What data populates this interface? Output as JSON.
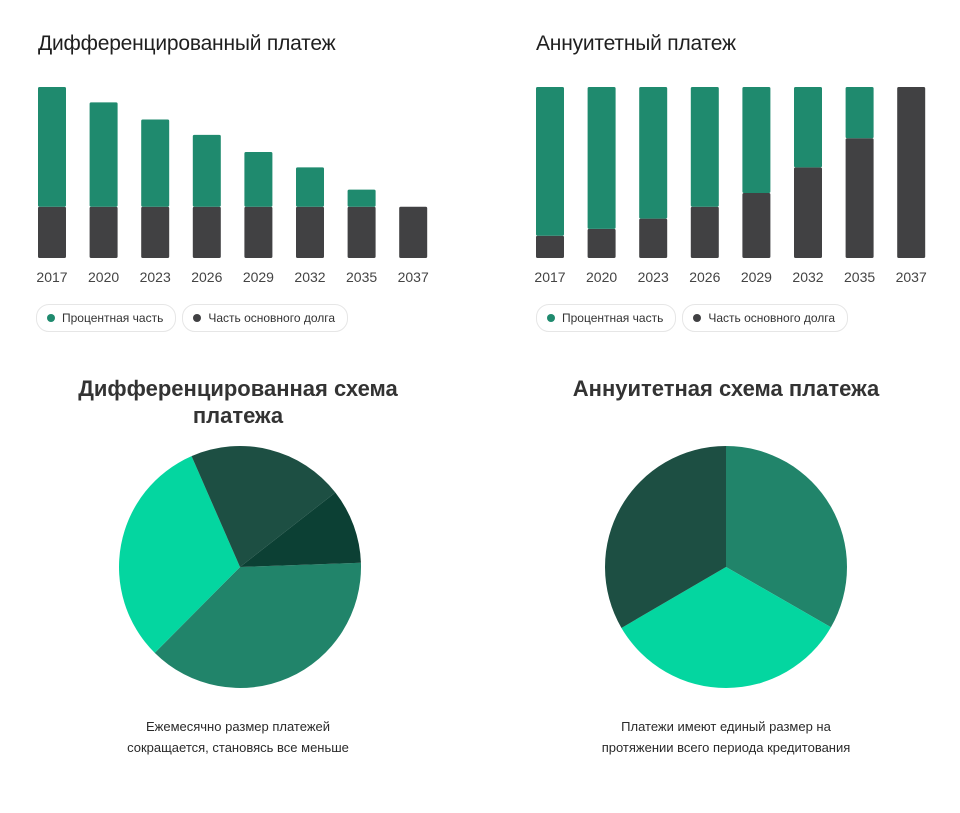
{
  "colors": {
    "interest": "#1f8a6e",
    "principal": "#414143",
    "pie_light": "#04d6a0",
    "pie_mid": "#21846a",
    "pie_dark": "#1d4f43",
    "pie_darkest": "#0c4034"
  },
  "legend": {
    "interest_label": "Процентная часть",
    "principal_label": "Часть основного долга"
  },
  "chart_data": [
    {
      "type": "bar",
      "stacked": true,
      "title": "Дифференцированный платеж",
      "categories": [
        "2017",
        "2020",
        "2023",
        "2026",
        "2029",
        "2032",
        "2035",
        "2037"
      ],
      "series": [
        {
          "name": "Часть основного долга",
          "values": [
            30,
            30,
            30,
            30,
            30,
            30,
            30,
            30
          ]
        },
        {
          "name": "Процентная часть",
          "values": [
            70,
            61,
            51,
            42,
            32,
            23,
            10,
            0
          ]
        }
      ],
      "ylim": [
        0,
        100
      ]
    },
    {
      "type": "bar",
      "stacked": true,
      "title": "Аннуитетный платеж",
      "categories": [
        "2017",
        "2020",
        "2023",
        "2026",
        "2029",
        "2032",
        "2035",
        "2037"
      ],
      "series": [
        {
          "name": "Часть основного долга",
          "values": [
            13,
            17,
            23,
            30,
            38,
            53,
            70,
            100
          ]
        },
        {
          "name": "Процентная часть",
          "values": [
            87,
            83,
            77,
            70,
            62,
            47,
            30,
            0
          ]
        }
      ],
      "ylim": [
        0,
        100
      ]
    },
    {
      "type": "pie",
      "title": "Дифференцированная схема платежа",
      "values": [
        38,
        31,
        21,
        10
      ],
      "colors": [
        "#21846a",
        "#04d6a0",
        "#1d4f43",
        "#0c4034"
      ],
      "caption": [
        "Ежемесячно размер платежей",
        "сокращается, становясь все меньше"
      ]
    },
    {
      "type": "pie",
      "title": "Аннуитетная схема платежа",
      "values": [
        33.3,
        33.3,
        33.4
      ],
      "colors": [
        "#21846a",
        "#04d6a0",
        "#1d4f43"
      ],
      "caption": [
        "Платежи имеют единый размер на",
        "протяжении всего периода кредитования"
      ]
    }
  ]
}
